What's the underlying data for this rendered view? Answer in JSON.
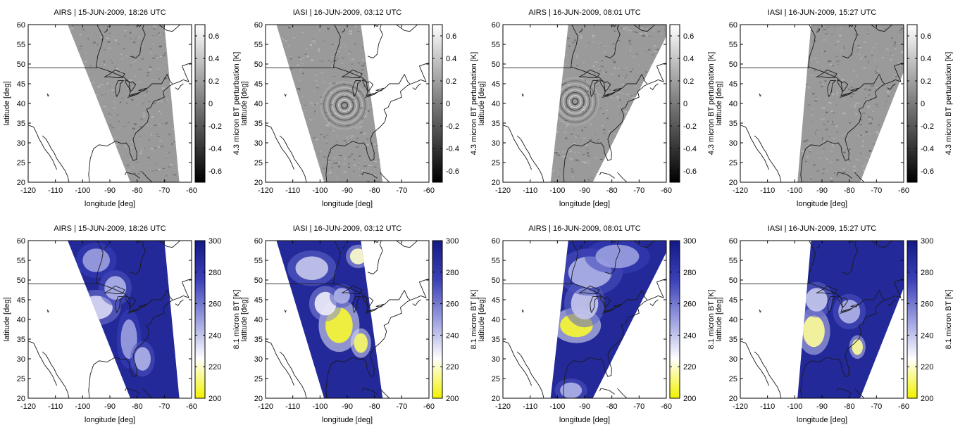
{
  "figure": {
    "colors": {
      "frame": "#000000",
      "coast": "#1a1a1a",
      "bt_high": "#1a238f",
      "bt_mid": "#f4f4ff",
      "bt_low": "#f2f200",
      "pert_pos": "#ffffff",
      "pert_neg": "#000000",
      "swath_neutral": "#9a9a9a"
    },
    "rows": [
      {
        "colorbar": {
          "label": "4.3 micron BT perturbation [K]",
          "range": [
            -0.7,
            0.7
          ],
          "ticks": [
            {
              "v": 0.6,
              "t": "0.6"
            },
            {
              "v": 0.4,
              "t": "0.4"
            },
            {
              "v": 0.2,
              "t": "0.2"
            },
            {
              "v": 0,
              "t": "0"
            },
            {
              "v": -0.2,
              "t": "-0.2"
            },
            {
              "v": -0.4,
              "t": "-0.4"
            },
            {
              "v": -0.6,
              "t": "-0.6"
            }
          ],
          "stops": [
            [
              "#000000",
              0
            ],
            [
              "#7a7a7a",
              0.5
            ],
            [
              "#ffffff",
              1
            ]
          ]
        }
      },
      {
        "colorbar": {
          "label": "8.1 micron BT [K]",
          "range": [
            200,
            300
          ],
          "ticks": [
            {
              "v": 300,
              "t": "300"
            },
            {
              "v": 280,
              "t": "280"
            },
            {
              "v": 260,
              "t": "260"
            },
            {
              "v": 240,
              "t": "240"
            },
            {
              "v": 220,
              "t": "220"
            },
            {
              "v": 200,
              "t": "200"
            }
          ],
          "stops": [
            [
              "#f2f200",
              0
            ],
            [
              "#ffffff",
              0.25
            ],
            [
              "#9a9ee0",
              0.5
            ],
            [
              "#3b40b8",
              0.75
            ],
            [
              "#131a85",
              1
            ]
          ]
        }
      }
    ]
  },
  "chart_data": [
    {
      "type": "heatmap",
      "title": "AIRS | 15-JUN-2009, 18:26 UTC",
      "xlabel": "longitude [deg]",
      "ylabel": "latitude [deg]",
      "xlim": [
        -120,
        -60
      ],
      "ylim": [
        20,
        60
      ],
      "xticks": [
        -120,
        -110,
        -100,
        -90,
        -80,
        -70,
        -60
      ],
      "yticks": [
        20,
        25,
        30,
        35,
        40,
        45,
        50,
        55,
        60
      ],
      "swath": [
        [
          -105.5,
          60
        ],
        [
          -70,
          60
        ],
        [
          -64.5,
          20
        ],
        [
          -82.5,
          20
        ]
      ],
      "field": "4.3 micron BT perturbation [K]",
      "colorbar_range": [
        -0.7,
        0.7
      ]
    },
    {
      "type": "heatmap",
      "title": "IASI | 16-JUN-2009, 03:12 UTC",
      "xlabel": "longitude [deg]",
      "ylabel": "latitude [deg]",
      "xlim": [
        -120,
        -60
      ],
      "ylim": [
        20,
        60
      ],
      "xticks": [
        -120,
        -110,
        -100,
        -90,
        -80,
        -70,
        -60
      ],
      "yticks": [
        20,
        25,
        30,
        35,
        40,
        45,
        50,
        55,
        60
      ],
      "swath": [
        [
          -116,
          60
        ],
        [
          -85,
          60
        ],
        [
          -77,
          20
        ],
        [
          -98.5,
          20
        ]
      ],
      "field": "4.3 micron BT perturbation [K]",
      "colorbar_range": [
        -0.7,
        0.7
      ]
    },
    {
      "type": "heatmap",
      "title": "AIRS | 16-JUN-2009, 08:01 UTC",
      "xlabel": "longitude [deg]",
      "ylabel": "latitude [deg]",
      "xlim": [
        -120,
        -60
      ],
      "ylim": [
        20,
        60
      ],
      "xticks": [
        -120,
        -110,
        -100,
        -90,
        -80,
        -70,
        -60
      ],
      "yticks": [
        20,
        25,
        30,
        35,
        40,
        45,
        50,
        55,
        60
      ],
      "swath": [
        [
          -96,
          60
        ],
        [
          -60,
          60
        ],
        [
          -60,
          57
        ],
        [
          -87,
          20
        ],
        [
          -102.5,
          20
        ]
      ],
      "field": "4.3 micron BT perturbation [K]",
      "colorbar_range": [
        -0.7,
        0.7
      ]
    },
    {
      "type": "heatmap",
      "title": "IASI | 16-JUN-2009, 15:27 UTC",
      "xlabel": "longitude [deg]",
      "ylabel": "latitude [deg]",
      "xlim": [
        -120,
        -60
      ],
      "ylim": [
        20,
        60
      ],
      "xticks": [
        -120,
        -110,
        -100,
        -90,
        -80,
        -70,
        -60
      ],
      "yticks": [
        20,
        25,
        30,
        35,
        40,
        45,
        50,
        55,
        60
      ],
      "swath": [
        [
          -94,
          60
        ],
        [
          -60,
          60
        ],
        [
          -60,
          48
        ],
        [
          -76,
          20
        ],
        [
          -99,
          20
        ]
      ],
      "field": "4.3 micron BT perturbation [K]",
      "colorbar_range": [
        -0.7,
        0.7
      ]
    },
    {
      "type": "heatmap",
      "title": "AIRS | 15-JUN-2009, 18:26 UTC",
      "xlabel": "longitude [deg]",
      "ylabel": "latitude [deg]",
      "xlim": [
        -120,
        -60
      ],
      "ylim": [
        20,
        60
      ],
      "xticks": [
        -120,
        -110,
        -100,
        -90,
        -80,
        -70,
        -60
      ],
      "yticks": [
        20,
        25,
        30,
        35,
        40,
        45,
        50,
        55,
        60
      ],
      "swath": [
        [
          -105.5,
          60
        ],
        [
          -70,
          60
        ],
        [
          -64.5,
          20
        ],
        [
          -82.5,
          20
        ]
      ],
      "field": "8.1 micron BT [K]",
      "colorbar_range": [
        200,
        300
      ],
      "clouds": [
        [
          -95,
          43,
          6,
          3,
          235
        ],
        [
          -88,
          48,
          4,
          3,
          245
        ],
        [
          -83,
          35,
          3,
          5,
          250
        ],
        [
          -78,
          30,
          3,
          3,
          245
        ],
        [
          -95,
          55,
          5,
          3,
          250
        ]
      ]
    },
    {
      "type": "heatmap",
      "title": "IASI | 16-JUN-2009, 03:12 UTC",
      "xlabel": "longitude [deg]",
      "ylabel": "latitude [deg]",
      "xlim": [
        -120,
        -60
      ],
      "ylim": [
        20,
        60
      ],
      "xticks": [
        -120,
        -110,
        -100,
        -90,
        -80,
        -70,
        -60
      ],
      "yticks": [
        20,
        25,
        30,
        35,
        40,
        45,
        50,
        55,
        60
      ],
      "swath": [
        [
          -116,
          60
        ],
        [
          -85,
          60
        ],
        [
          -77,
          20
        ],
        [
          -98.5,
          20
        ]
      ],
      "field": "8.1 micron BT [K]",
      "colorbar_range": [
        200,
        300
      ],
      "clouds": [
        [
          -93,
          38.5,
          5,
          4.5,
          205
        ],
        [
          -85,
          34,
          2.5,
          2.5,
          210
        ],
        [
          -98,
          44,
          4,
          3,
          230
        ],
        [
          -103,
          53,
          6,
          3,
          240
        ],
        [
          -86,
          56,
          3,
          2,
          220
        ],
        [
          -92,
          46,
          3,
          2,
          245
        ]
      ]
    },
    {
      "type": "heatmap",
      "title": "AIRS | 16-JUN-2009, 08:01 UTC",
      "xlabel": "longitude [deg]",
      "ylabel": "latitude [deg]",
      "xlim": [
        -120,
        -60
      ],
      "ylim": [
        20,
        60
      ],
      "xticks": [
        -120,
        -110,
        -100,
        -90,
        -80,
        -70,
        -60
      ],
      "yticks": [
        20,
        25,
        30,
        35,
        40,
        45,
        50,
        55,
        60
      ],
      "swath": [
        [
          -96,
          60
        ],
        [
          -60,
          60
        ],
        [
          -60,
          57
        ],
        [
          -87,
          20
        ],
        [
          -102.5,
          20
        ]
      ],
      "field": "8.1 micron BT [K]",
      "colorbar_range": [
        200,
        300
      ],
      "clouds": [
        [
          -93,
          38.5,
          6,
          3,
          205
        ],
        [
          -90,
          44,
          5,
          4,
          240
        ],
        [
          -88,
          52,
          8,
          4,
          245
        ],
        [
          -78,
          56,
          8,
          3,
          250
        ],
        [
          -95,
          22,
          4,
          2,
          245
        ]
      ]
    },
    {
      "type": "heatmap",
      "title": "IASI | 16-JUN-2009, 15:27 UTC",
      "xlabel": "longitude [deg]",
      "ylabel": "latitude [deg]",
      "xlim": [
        -120,
        -60
      ],
      "ylim": [
        20,
        60
      ],
      "xticks": [
        -120,
        -110,
        -100,
        -90,
        -80,
        -70,
        -60
      ],
      "yticks": [
        20,
        25,
        30,
        35,
        40,
        45,
        50,
        55,
        60
      ],
      "swath": [
        [
          -94,
          60
        ],
        [
          -60,
          60
        ],
        [
          -60,
          48
        ],
        [
          -76,
          20
        ],
        [
          -99,
          20
        ]
      ],
      "field": "8.1 micron BT [K]",
      "colorbar_range": [
        200,
        300
      ],
      "clouds": [
        [
          -93,
          37,
          4,
          4,
          215
        ],
        [
          -92,
          45,
          4,
          3,
          240
        ],
        [
          -77,
          33,
          2,
          2,
          215
        ],
        [
          -80,
          42,
          4,
          3,
          245
        ]
      ]
    }
  ]
}
